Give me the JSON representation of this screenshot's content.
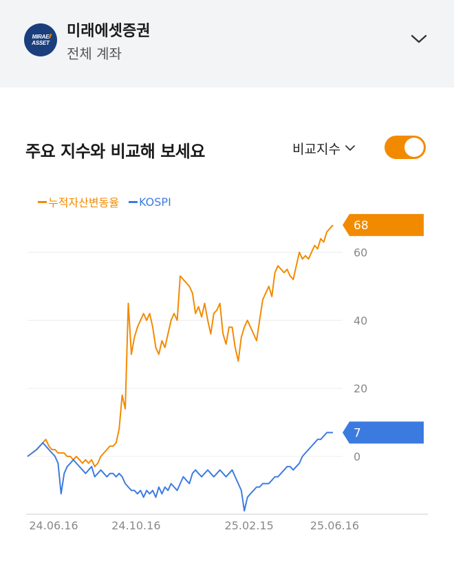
{
  "header": {
    "logo_line1": "MIRAE",
    "logo_line2": "ASSET",
    "broker_name": "미래에셋증권",
    "account_name": "전체 계좌",
    "expand_icon": "chevron-down-icon"
  },
  "card": {
    "title": "주요 지수와 비교해 보세요",
    "compare_label": "비교지수",
    "compare_icon": "chevron-down-icon",
    "toggle_on": true
  },
  "colors": {
    "asset": "#f28a00",
    "kospi": "#3b7be0",
    "grid": "#ececec",
    "axis_text": "#888888"
  },
  "chart_data": {
    "type": "line",
    "yticks": [
      0,
      20,
      40,
      60
    ],
    "ylim": [
      -17,
      70
    ],
    "xlim": [
      0,
      100
    ],
    "xtick_labels": [
      "24.06.16",
      "24.10.16",
      "25.02.15",
      "25.06.16"
    ],
    "xtick_positions": [
      0,
      27,
      64,
      92
    ],
    "series": [
      {
        "name": "누적자산변동율",
        "end_label": "68",
        "x": [
          0,
          1.5,
          3,
          4,
          5,
          6,
          7,
          8,
          9,
          10,
          11,
          12,
          13,
          14,
          15,
          16,
          17,
          18,
          19,
          20,
          21,
          22,
          23,
          24,
          25,
          26,
          27,
          28,
          29,
          30,
          31,
          32,
          33,
          34,
          35,
          36,
          37,
          38,
          39,
          40,
          41,
          42,
          43,
          44,
          45,
          46,
          47,
          48,
          49,
          50,
          51,
          52,
          53,
          54,
          55,
          56,
          57,
          58,
          59,
          60,
          61,
          62,
          63,
          64,
          65,
          66,
          67,
          68,
          69,
          70,
          71,
          72,
          73,
          74,
          75,
          76,
          77,
          78,
          79,
          80,
          81,
          82,
          83,
          84,
          85,
          86,
          87,
          88,
          89,
          90,
          91,
          92,
          93,
          94,
          95,
          96,
          97,
          98,
          99,
          100
        ],
        "y": [
          0,
          1,
          2,
          3,
          4,
          5,
          3,
          2,
          2,
          1,
          1,
          1,
          0,
          0,
          -1,
          0,
          -1,
          -2,
          -1,
          -2,
          -1,
          -3,
          -2,
          0,
          1,
          2,
          3,
          3,
          4,
          8,
          18,
          14,
          45,
          30,
          35,
          38,
          40,
          42,
          40,
          42,
          38,
          32,
          30,
          34,
          32,
          36,
          40,
          42,
          40,
          53,
          52,
          51,
          50,
          48,
          42,
          44,
          41,
          45,
          40,
          36,
          42,
          43,
          45,
          36,
          33,
          38,
          38,
          32,
          28,
          35,
          38,
          40,
          38,
          36,
          34,
          40,
          46,
          48,
          50,
          47,
          54,
          56,
          55,
          54,
          55,
          53,
          52,
          56,
          60,
          58,
          59,
          58,
          60,
          62,
          61,
          64,
          63,
          66,
          67,
          68
        ]
      },
      {
        "name": "KOSPI",
        "end_label": "7",
        "x": [
          0,
          1.5,
          3,
          4,
          5,
          6,
          7,
          8,
          9,
          10,
          11,
          12,
          13,
          14,
          15,
          16,
          17,
          18,
          19,
          20,
          21,
          22,
          23,
          24,
          25,
          26,
          27,
          28,
          29,
          30,
          31,
          32,
          33,
          34,
          35,
          36,
          37,
          38,
          39,
          40,
          41,
          42,
          43,
          44,
          45,
          46,
          47,
          48,
          49,
          50,
          51,
          52,
          53,
          54,
          55,
          56,
          57,
          58,
          59,
          60,
          61,
          62,
          63,
          64,
          65,
          66,
          67,
          68,
          69,
          70,
          71,
          72,
          73,
          74,
          75,
          76,
          77,
          78,
          79,
          80,
          81,
          82,
          83,
          84,
          85,
          86,
          87,
          88,
          89,
          90,
          91,
          92,
          93,
          94,
          95,
          96,
          97,
          98,
          99,
          100
        ],
        "y": [
          0,
          1,
          2,
          3,
          4,
          3,
          2,
          1,
          0,
          -2,
          -11,
          -5,
          -3,
          -2,
          -1,
          -2,
          -3,
          -4,
          -5,
          -4,
          -3,
          -6,
          -5,
          -4,
          -5,
          -6,
          -5,
          -5,
          -6,
          -5,
          -6,
          -8,
          -9,
          -10,
          -10,
          -11,
          -10,
          -12,
          -10,
          -11,
          -10,
          -12,
          -9,
          -11,
          -9,
          -10,
          -8,
          -9,
          -10,
          -8,
          -6,
          -7,
          -8,
          -5,
          -4,
          -5,
          -6,
          -5,
          -4,
          -5,
          -6,
          -5,
          -4,
          -5,
          -6,
          -5,
          -4,
          -6,
          -8,
          -10,
          -16,
          -12,
          -11,
          -10,
          -9,
          -9,
          -8,
          -8,
          -8,
          -7,
          -6,
          -6,
          -5,
          -4,
          -3,
          -3,
          -4,
          -3,
          -2,
          0,
          1,
          2,
          3,
          4,
          5,
          5,
          6,
          7,
          7,
          7
        ]
      }
    ]
  }
}
